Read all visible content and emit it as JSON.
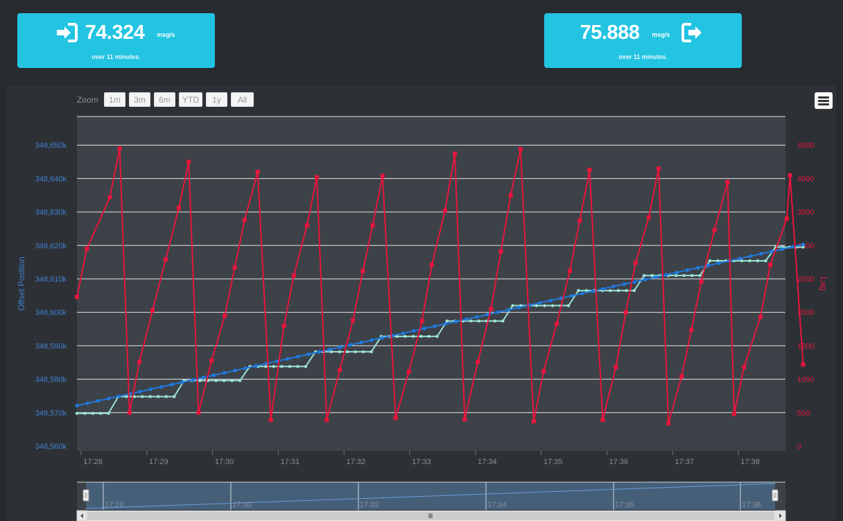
{
  "stats": [
    {
      "value": "74.324",
      "unit": "msg/s",
      "note": "over 11 minutes."
    },
    {
      "value": "75.888",
      "unit": "msg/s",
      "note": "over 11 minutes."
    }
  ],
  "zoom": {
    "label": "Zoom",
    "buttons": [
      "1m",
      "3m",
      "6m",
      "YTD",
      "1y",
      "All"
    ]
  },
  "navigator": {
    "labels": [
      "17:28",
      "17:30",
      "17:32",
      "17:34",
      "17:36",
      "17:38"
    ]
  },
  "colors": {
    "offset": "#1f7ae0",
    "consumer": "#9be3d5",
    "lag": "#e8153c",
    "card": "#23c4e2"
  },
  "chart_data": {
    "type": "line",
    "title": "",
    "xlabel": "",
    "x_ticks": [
      "17:28",
      "17:29",
      "17:30",
      "17:31",
      "17:32",
      "17:33",
      "17:34",
      "17:35",
      "17:36",
      "17:37",
      "17:38"
    ],
    "y_left": {
      "label": "Offset Position",
      "ylim": [
        348560000,
        348660000
      ],
      "ticks": [
        "348,560k",
        "348,570k",
        "348,580k",
        "348,590k",
        "348,600k",
        "348,610k",
        "348,620k",
        "348,630k",
        "348,640k",
        "348,650k"
      ]
    },
    "y_right": {
      "label": "Lag",
      "ylim": [
        0,
        5000
      ],
      "ticks": [
        "0",
        "500",
        "1000",
        "1500",
        "2000",
        "2500",
        "3000",
        "3500",
        "4000",
        "4500"
      ]
    },
    "series": [
      {
        "axis": "left",
        "x_minutes": [
          0.0,
          11.05
        ],
        "values": [
          348572100,
          348620300
        ],
        "point_count": 70
      },
      {
        "axis": "left",
        "steps": [
          {
            "from": 0.0,
            "to": 0.48,
            "value": 348569800
          },
          {
            "from": 0.63,
            "to": 1.48,
            "value": 348574800
          },
          {
            "from": 1.63,
            "to": 2.48,
            "value": 348579600
          },
          {
            "from": 2.63,
            "to": 3.48,
            "value": 348583800
          },
          {
            "from": 3.63,
            "to": 4.48,
            "value": 348588200
          },
          {
            "from": 4.63,
            "to": 5.48,
            "value": 348592800
          },
          {
            "from": 5.63,
            "to": 6.48,
            "value": 348597400
          },
          {
            "from": 6.63,
            "to": 7.48,
            "value": 348602000
          },
          {
            "from": 7.63,
            "to": 8.48,
            "value": 348606500
          },
          {
            "from": 8.63,
            "to": 9.48,
            "value": 348611000
          },
          {
            "from": 9.63,
            "to": 10.48,
            "value": 348615400
          },
          {
            "from": 10.63,
            "to": 11.05,
            "value": 348619500
          }
        ]
      },
      {
        "axis": "right",
        "x_minutes": [
          0.0,
          0.15,
          0.5,
          0.65,
          0.8,
          0.95,
          1.15,
          1.35,
          1.55,
          1.7,
          1.85,
          2.05,
          2.25,
          2.4,
          2.55,
          2.75,
          2.95,
          3.15,
          3.3,
          3.5,
          3.65,
          3.8,
          4.0,
          4.2,
          4.35,
          4.5,
          4.65,
          4.85,
          5.05,
          5.25,
          5.4,
          5.6,
          5.75,
          5.9,
          6.1,
          6.3,
          6.45,
          6.6,
          6.75,
          6.95,
          7.1,
          7.3,
          7.5,
          7.65,
          7.8,
          8.0,
          8.2,
          8.35,
          8.5,
          8.7,
          8.85,
          9.0,
          9.2,
          9.35,
          9.5,
          9.7,
          9.9,
          10.0,
          10.15,
          10.4,
          10.55,
          10.8,
          10.85,
          11.05
        ],
        "values": [
          2230,
          2950,
          3720,
          4450,
          500,
          1260,
          2030,
          2790,
          3560,
          4250,
          500,
          1280,
          1950,
          2670,
          3380,
          4100,
          390,
          1800,
          2550,
          3300,
          4020,
          390,
          1140,
          1880,
          2620,
          3300,
          4040,
          420,
          1110,
          1870,
          2710,
          3520,
          4370,
          400,
          1260,
          2050,
          2910,
          3750,
          4440,
          370,
          1120,
          1830,
          2620,
          3370,
          4130,
          390,
          1180,
          2000,
          2740,
          3420,
          4150,
          340,
          1040,
          1740,
          2460,
          3230,
          3950,
          480,
          1180,
          1930,
          2710,
          3400,
          4050,
          1220
        ]
      }
    ]
  }
}
